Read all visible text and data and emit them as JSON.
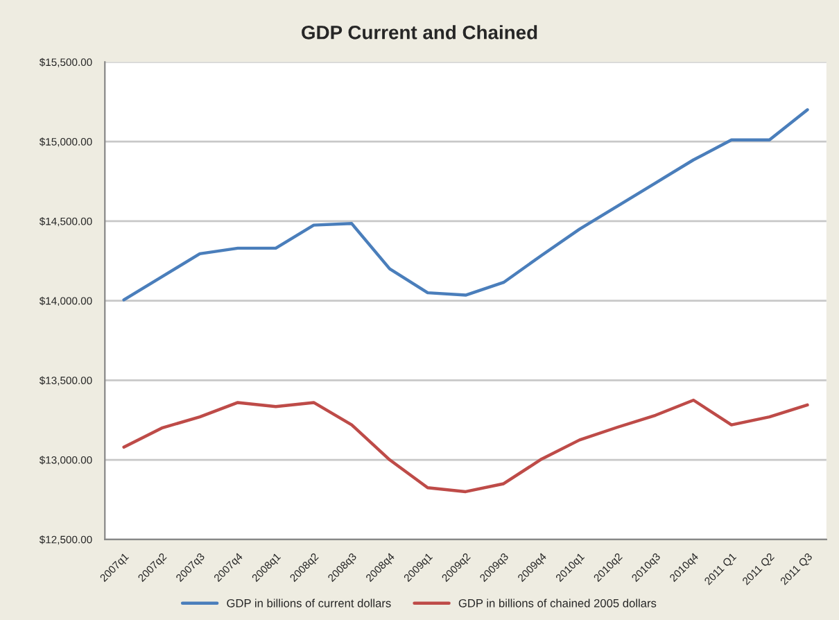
{
  "chart_data": {
    "type": "line",
    "title": "GDP Current and Chained",
    "categories": [
      "2007q1",
      "2007q2",
      "2007q3",
      "2007q4",
      "2008q1",
      "2008q2",
      "2008q3",
      "2008q4",
      "2009q1",
      "2009q2",
      "2009q3",
      "2009q4",
      "2010q1",
      "2010q2",
      "2010q3",
      "2010q4",
      "2011 Q1",
      "2011 Q2",
      "2011 Q3"
    ],
    "series": [
      {
        "name": "GDP in billions of current dollars",
        "color": "#4a7ebb",
        "values": [
          14005,
          14150,
          14295,
          14330,
          14330,
          14475,
          14485,
          14200,
          14050,
          14035,
          14115,
          14285,
          14450,
          14595,
          14740,
          14885,
          15010,
          15010,
          15200
        ]
      },
      {
        "name": "GDP in billions of chained 2005 dollars",
        "color": "#be4b48",
        "values": [
          13080,
          13200,
          13270,
          13360,
          13335,
          13360,
          13220,
          13000,
          12825,
          12800,
          12850,
          13005,
          13125,
          13205,
          13280,
          13375,
          13220,
          13270,
          13345
        ]
      }
    ],
    "ylim": [
      12500,
      15500
    ],
    "yticks": [
      {
        "value": 12500,
        "label": "$12,500.00"
      },
      {
        "value": 13000,
        "label": "$13,000.00"
      },
      {
        "value": 13500,
        "label": "$13,500.00"
      },
      {
        "value": 14000,
        "label": "$14,000.00"
      },
      {
        "value": 14500,
        "label": "$14,500.00"
      },
      {
        "value": 15000,
        "label": "$15,000.00"
      },
      {
        "value": 15500,
        "label": "$15,500.00"
      }
    ],
    "grid": "y",
    "legend": "bottom",
    "marker": "none",
    "line_style": "solid"
  }
}
